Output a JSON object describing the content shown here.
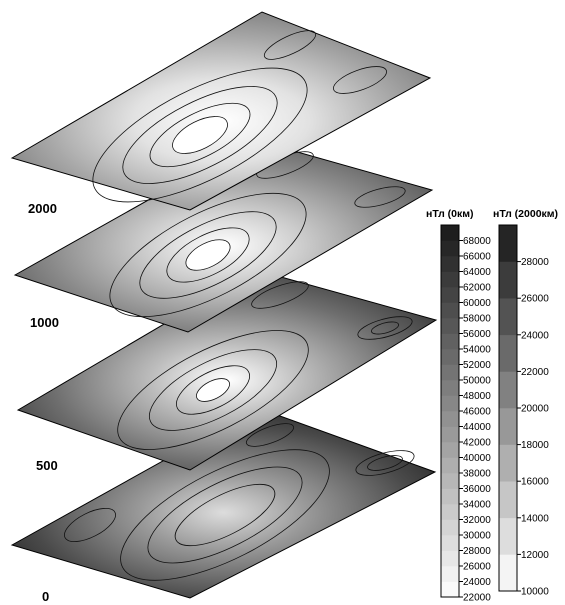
{
  "levels": [
    {
      "label": "2000",
      "name": "2000km",
      "scale": "right"
    },
    {
      "label": "1000",
      "name": "1000km",
      "scale": "left"
    },
    {
      "label": "500",
      "name": "500km",
      "scale": "left"
    },
    {
      "label": "0",
      "name": "0km",
      "scale": "left"
    }
  ],
  "legend_left": {
    "title": "нТл  (0км)",
    "min": 22000,
    "max": 70000,
    "step": 2000,
    "ticks": [
      "68000",
      "66000",
      "64000",
      "62000",
      "60000",
      "58000",
      "56000",
      "54000",
      "52000",
      "50000",
      "48000",
      "46000",
      "44000",
      "42000",
      "40000",
      "38000",
      "36000",
      "34000",
      "32000",
      "30000",
      "28000",
      "26000",
      "24000",
      "22000"
    ]
  },
  "legend_right": {
    "title": "нТл  (2000км)",
    "min": 10000,
    "max": 30000,
    "step": 2000,
    "ticks": [
      "28000",
      "26000",
      "24000",
      "22000",
      "20000",
      "18000",
      "16000",
      "14000",
      "12000",
      "10000"
    ]
  },
  "colors": {
    "dark": "#1a1a1a",
    "light": "#ffffff",
    "line": "#111111"
  }
}
